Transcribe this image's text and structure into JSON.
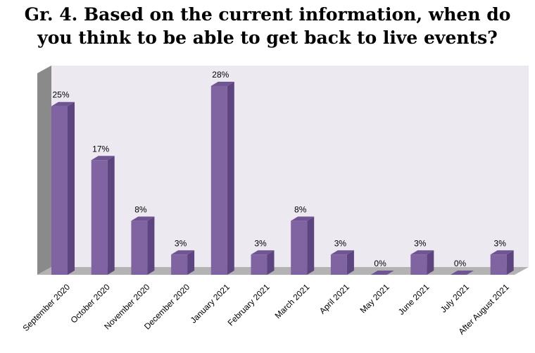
{
  "title_lines": [
    "Gr. 4. Based on the current information, when do",
    "you think to be able to get back to live events?"
  ],
  "colors": {
    "bar_front": "#8064a2",
    "bar_side": "#5d4680",
    "bar_top": "#6f5592",
    "wall": "#ece9f0",
    "wall_side": "#8a8a8a",
    "floor": "#b3b3b3"
  },
  "chart_data": {
    "type": "bar",
    "categories": [
      "September 2020",
      "October 2020",
      "November 2020",
      "December 2020",
      "January 2021",
      "February 2021",
      "March 2021",
      "April 2021",
      "May 2021",
      "June 2021",
      "July 2021",
      "After August 2021"
    ],
    "values": [
      25,
      17,
      8,
      3,
      28,
      3,
      8,
      3,
      0,
      3,
      0,
      3
    ],
    "value_labels": [
      "25%",
      "17%",
      "8%",
      "3%",
      "28%",
      "3%",
      "8%",
      "3%",
      "0%",
      "3%",
      "0%",
      "3%"
    ],
    "title": "Gr. 4. Based on the current information, when do you think to be able to get back to live events?",
    "ylim": [
      0,
      30
    ],
    "grid": false,
    "legend": "none"
  }
}
